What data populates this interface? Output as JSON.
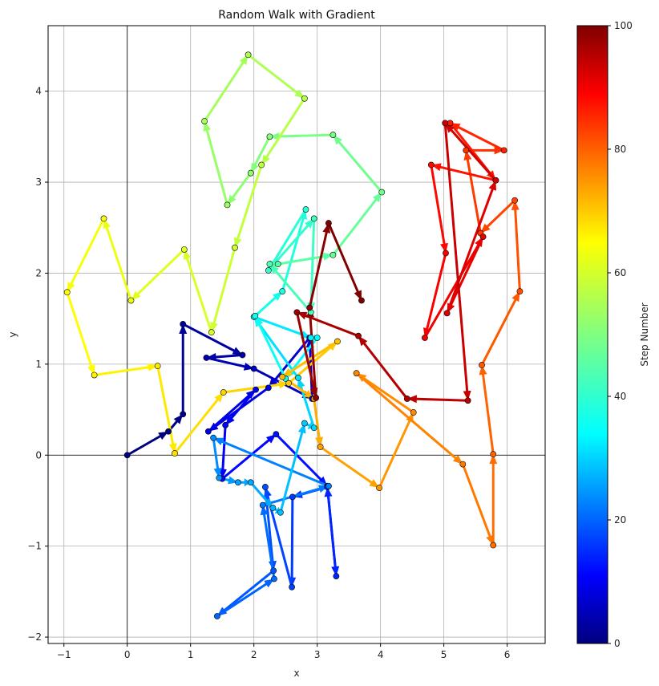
{
  "chart_data": {
    "type": "line",
    "title": "Random Walk with Gradient",
    "xlabel": "x",
    "ylabel": "y",
    "xlim": [
      -1.25,
      6.6
    ],
    "ylim": [
      -2.07,
      4.72
    ],
    "xticks": [
      -1,
      0,
      1,
      2,
      3,
      4,
      5,
      6
    ],
    "yticks": [
      -2,
      -1,
      0,
      1,
      2,
      3,
      4
    ],
    "grid": true,
    "reference_lines": {
      "x": 0,
      "y": 0
    },
    "colormap": "jet",
    "colorbar": {
      "label": "Step Number",
      "range": [
        0,
        100
      ],
      "ticks": [
        0,
        20,
        40,
        60,
        80,
        100
      ]
    },
    "points": [
      [
        0.0,
        0.0
      ],
      [
        0.65,
        0.26
      ],
      [
        0.88,
        0.45
      ],
      [
        0.88,
        1.44
      ],
      [
        1.82,
        1.1
      ],
      [
        1.25,
        1.07
      ],
      [
        2.0,
        0.95
      ],
      [
        2.92,
        0.62
      ],
      [
        2.88,
        1.29
      ],
      [
        2.23,
        0.74
      ],
      [
        1.28,
        0.26
      ],
      [
        2.03,
        0.72
      ],
      [
        1.55,
        0.33
      ],
      [
        1.5,
        -0.26
      ],
      [
        2.35,
        0.23
      ],
      [
        3.16,
        -0.34
      ],
      [
        3.3,
        -1.33
      ],
      [
        3.16,
        -0.35
      ],
      [
        2.61,
        -0.46
      ],
      [
        2.6,
        -1.45
      ],
      [
        2.18,
        -0.35
      ],
      [
        2.31,
        -1.27
      ],
      [
        1.42,
        -1.77
      ],
      [
        2.32,
        -1.36
      ],
      [
        2.14,
        -0.55
      ],
      [
        3.18,
        -0.34
      ],
      [
        1.36,
        0.19
      ],
      [
        1.45,
        -0.25
      ],
      [
        1.75,
        -0.3
      ],
      [
        1.95,
        -0.3
      ],
      [
        2.3,
        -0.58
      ],
      [
        2.42,
        -0.63
      ],
      [
        2.8,
        0.35
      ],
      [
        2.95,
        0.3
      ],
      [
        2.7,
        0.85
      ],
      [
        2.0,
        1.52
      ],
      [
        2.9,
        1.29
      ],
      [
        3.0,
        1.29
      ],
      [
        2.5,
        0.84
      ],
      [
        2.02,
        1.53
      ],
      [
        2.45,
        1.8
      ],
      [
        2.82,
        2.7
      ],
      [
        2.23,
        2.03
      ],
      [
        2.95,
        2.6
      ],
      [
        2.9,
        1.57
      ],
      [
        2.25,
        2.1
      ],
      [
        2.38,
        2.1
      ],
      [
        3.25,
        2.2
      ],
      [
        4.02,
        2.89
      ],
      [
        3.25,
        3.52
      ],
      [
        2.25,
        3.5
      ],
      [
        1.95,
        3.1
      ],
      [
        1.58,
        2.75
      ],
      [
        1.22,
        3.67
      ],
      [
        1.91,
        4.4
      ],
      [
        2.8,
        3.92
      ],
      [
        2.12,
        3.19
      ],
      [
        1.7,
        2.28
      ],
      [
        1.33,
        1.35
      ],
      [
        0.9,
        2.26
      ],
      [
        0.06,
        1.7
      ],
      [
        -0.37,
        2.6
      ],
      [
        -0.95,
        1.79
      ],
      [
        -0.52,
        0.88
      ],
      [
        0.48,
        0.98
      ],
      [
        0.75,
        0.02
      ],
      [
        1.52,
        0.69
      ],
      [
        2.55,
        0.79
      ],
      [
        3.32,
        1.25
      ],
      [
        2.45,
        0.86
      ],
      [
        2.95,
        0.62
      ],
      [
        3.05,
        0.09
      ],
      [
        3.98,
        -0.36
      ],
      [
        4.52,
        0.47
      ],
      [
        3.62,
        0.9
      ],
      [
        5.3,
        -0.1
      ],
      [
        5.78,
        -0.99
      ],
      [
        5.78,
        0.01
      ],
      [
        5.6,
        0.99
      ],
      [
        6.2,
        1.8
      ],
      [
        6.12,
        2.8
      ],
      [
        5.58,
        2.44
      ],
      [
        5.35,
        3.35
      ],
      [
        5.95,
        3.35
      ],
      [
        5.1,
        3.65
      ],
      [
        5.82,
        3.02
      ],
      [
        4.8,
        3.19
      ],
      [
        5.03,
        2.22
      ],
      [
        4.7,
        1.29
      ],
      [
        5.62,
        2.4
      ],
      [
        5.05,
        1.56
      ],
      [
        5.82,
        3.02
      ],
      [
        5.02,
        3.65
      ],
      [
        5.38,
        0.6
      ],
      [
        4.42,
        0.62
      ],
      [
        3.65,
        1.31
      ],
      [
        2.68,
        1.57
      ],
      [
        2.98,
        0.63
      ],
      [
        2.88,
        1.62
      ],
      [
        3.18,
        2.55
      ],
      [
        3.7,
        1.7
      ]
    ]
  }
}
